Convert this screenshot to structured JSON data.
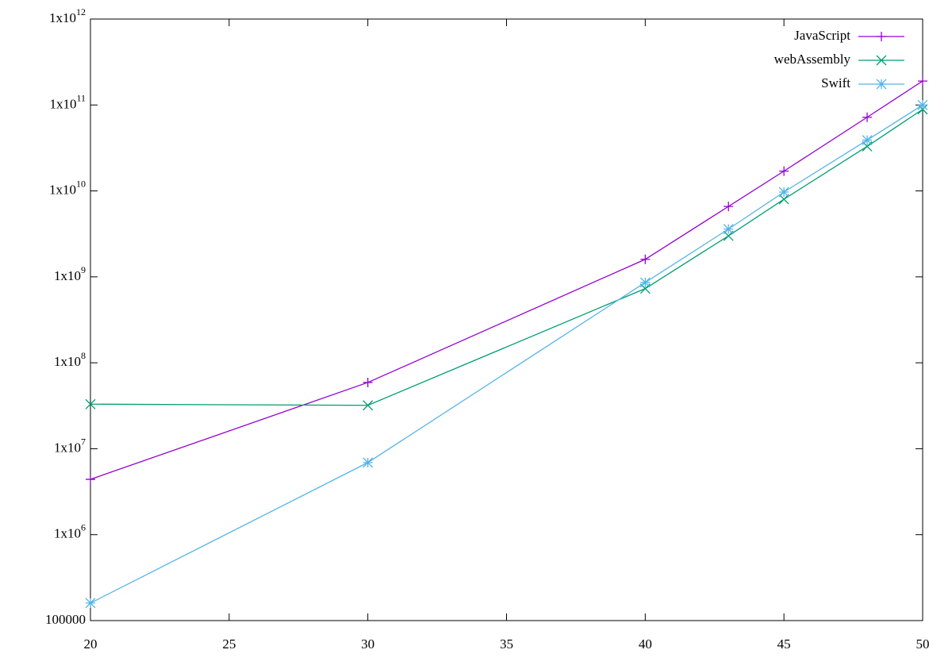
{
  "chart_data": {
    "type": "line",
    "log_y": true,
    "x": [
      20,
      30,
      40,
      43,
      45,
      48,
      50
    ],
    "xlim": [
      20,
      50
    ],
    "xticks": [
      20,
      25,
      30,
      35,
      40,
      45,
      50
    ],
    "ylim": [
      100000,
      1000000000000
    ],
    "yticks": [
      100000,
      {
        "value": 1000000,
        "label": "1x10",
        "superscript": "6"
      },
      {
        "value": 10000000,
        "label": "1x10",
        "superscript": "7"
      },
      {
        "value": 100000000,
        "label": "1x10",
        "superscript": "8"
      },
      {
        "value": 1000000000,
        "label": "1x10",
        "superscript": "9"
      },
      {
        "value": 10000000000,
        "label": "1x10",
        "superscript": "10"
      },
      {
        "value": 100000000000,
        "label": "1x10",
        "superscript": "11"
      },
      {
        "value": 1000000000000,
        "label": "1x10",
        "superscript": "12"
      }
    ],
    "legend": "top-right",
    "series": [
      {
        "name": "JavaScript",
        "color": "#9400d3",
        "marker": "plus",
        "values": [
          4400000,
          59000000,
          1600000000,
          6600000000,
          17000000000,
          72000000000,
          190000000000
        ]
      },
      {
        "name": "webAssembly",
        "color": "#009e73",
        "marker": "cross",
        "values": [
          33000000,
          32000000,
          730000000,
          3000000000,
          8000000000,
          33000000000,
          89000000000
        ]
      },
      {
        "name": "Swift",
        "color": "#56b4e9",
        "marker": "star",
        "values": [
          160000,
          6900000,
          860000000,
          3600000000,
          9700000000,
          39000000000,
          100000000000
        ]
      }
    ]
  }
}
